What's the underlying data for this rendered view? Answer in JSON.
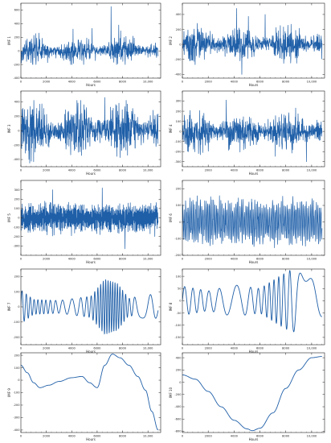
{
  "chart_data": [
    {
      "type": "line",
      "ylabel": "IMF 1",
      "xlabel": "Hours",
      "xlim": [
        0,
        11000
      ],
      "xticks": [
        0,
        2000,
        4000,
        6000,
        8000,
        10000
      ],
      "xtick_labels": [
        "0",
        "2000",
        "4000",
        "6000",
        "8000",
        "10,000"
      ],
      "ylim": [
        -400,
        700
      ],
      "yticks": [
        -400,
        -200,
        0,
        200,
        400,
        600
      ],
      "ytick_labels": [
        "-400",
        "-200",
        "0",
        "200",
        "400",
        "600"
      ],
      "color": "#1f5fa8",
      "series": [
        {
          "kind": "noise",
          "amp": 90,
          "max": 320,
          "min": -200,
          "spikes": [
            [
              7100,
              650
            ],
            [
              7700,
              380
            ],
            [
              5600,
              330
            ]
          ],
          "cycles": 0
        }
      ]
    },
    {
      "type": "line",
      "ylabel": "IMF 2",
      "xlabel": "Hours",
      "xlim": [
        0,
        11000
      ],
      "xticks": [
        0,
        2000,
        4000,
        6000,
        8000,
        10000
      ],
      "xtick_labels": [
        "0",
        "2000",
        "4000",
        "6000",
        "8000",
        "10,000"
      ],
      "ylim": [
        -450,
        550
      ],
      "yticks": [
        -400,
        -200,
        0,
        200,
        400
      ],
      "ytick_labels": [
        "-400",
        "-200",
        "0",
        "200",
        "400"
      ],
      "color": "#1f5fa8",
      "series": [
        {
          "kind": "noise",
          "amp": 110,
          "max": 500,
          "min": -420,
          "spikes": [
            [
              4200,
              480
            ],
            [
              4600,
              -400
            ],
            [
              6400,
              400
            ]
          ],
          "cycles": 0
        }
      ]
    },
    {
      "type": "line",
      "ylabel": "IMF 3",
      "xlabel": "Hours",
      "xlim": [
        0,
        11000
      ],
      "xticks": [
        0,
        2000,
        4000,
        6000,
        8000,
        10000
      ],
      "xtick_labels": [
        "0",
        "2000",
        "4000",
        "6000",
        "8000",
        "10,000"
      ],
      "ylim": [
        -500,
        550
      ],
      "yticks": [
        -400,
        -200,
        0,
        200,
        400
      ],
      "ytick_labels": [
        "-400",
        "-200",
        "0",
        "200",
        "400"
      ],
      "color": "#1f5fa8",
      "series": [
        {
          "kind": "noise",
          "amp": 170,
          "max": 420,
          "min": -450,
          "spikes": [
            [
              6600,
              460
            ],
            [
              1000,
              -430
            ]
          ],
          "cycles": 0
        }
      ]
    },
    {
      "type": "line",
      "ylabel": "IMF 4",
      "xlabel": "Hours",
      "xlim": [
        0,
        11000
      ],
      "xticks": [
        0,
        2000,
        4000,
        6000,
        8000,
        10000
      ],
      "xtick_labels": [
        "0",
        "2000",
        "4000",
        "6000",
        "8000",
        "10,000"
      ],
      "ylim": [
        -350,
        400
      ],
      "yticks": [
        -300,
        -200,
        -100,
        0,
        100,
        200,
        300
      ],
      "ytick_labels": [
        "-300",
        "-200",
        "-100",
        "0",
        "100",
        "200",
        "300"
      ],
      "color": "#1f5fa8",
      "series": [
        {
          "kind": "noise",
          "amp": 90,
          "max": 320,
          "min": -320,
          "spikes": [
            [
              3400,
              310
            ],
            [
              9600,
              -300
            ]
          ],
          "cycles": 0
        }
      ]
    },
    {
      "type": "line",
      "ylabel": "IMF 5",
      "xlabel": "Hours",
      "xlim": [
        0,
        11000
      ],
      "xticks": [
        0,
        2000,
        4000,
        6000,
        8000,
        10000
      ],
      "xtick_labels": [
        "0",
        "2000",
        "4000",
        "6000",
        "8000",
        "10,000"
      ],
      "ylim": [
        -400,
        400
      ],
      "yticks": [
        -300,
        -200,
        -100,
        0,
        100,
        200,
        300
      ],
      "ytick_labels": [
        "-300",
        "-200",
        "-100",
        "0",
        "100",
        "200",
        "300"
      ],
      "color": "#1f5fa8",
      "series": [
        {
          "kind": "osc",
          "amp": 120,
          "max": 330,
          "min": -350,
          "cycles": 260,
          "spikes": [
            [
              2500,
              300
            ],
            [
              6400,
              320
            ],
            [
              8200,
              -330
            ]
          ]
        }
      ]
    },
    {
      "type": "line",
      "ylabel": "IMF 6",
      "xlabel": "Hours",
      "xlim": [
        0,
        11000
      ],
      "xticks": [
        0,
        2000,
        4000,
        6000,
        8000,
        10000
      ],
      "xtick_labels": [
        "0",
        "2000",
        "4000",
        "6000",
        "8000",
        "10,000"
      ],
      "ylim": [
        -200,
        250
      ],
      "yticks": [
        -200,
        -100,
        0,
        100,
        200
      ],
      "ytick_labels": [
        "-200",
        "-100",
        "0",
        "100",
        "200"
      ],
      "color": "#1f5fa8",
      "series": [
        {
          "kind": "osc",
          "amp": 110,
          "max": 220,
          "min": -190,
          "cycles": 95,
          "spikes": []
        }
      ]
    },
    {
      "type": "line",
      "ylabel": "IMF 7",
      "xlabel": "Hours",
      "xlim": [
        0,
        11000
      ],
      "xticks": [
        0,
        2000,
        4000,
        6000,
        8000,
        10000
      ],
      "xtick_labels": [
        "0",
        "2000",
        "4000",
        "6000",
        "8000",
        "10,000"
      ],
      "ylim": [
        -250,
        250
      ],
      "yticks": [
        -200,
        -100,
        0,
        100,
        200
      ],
      "ytick_labels": [
        "-200",
        "-100",
        "0",
        "100",
        "200"
      ],
      "color": "#1f5fa8",
      "series": [
        {
          "kind": "wave",
          "amp": 70,
          "cycles": 30,
          "envelope": [
            [
              0,
              1.6
            ],
            [
              1000,
              0.7
            ],
            [
              3000,
              0.6
            ],
            [
              5500,
              1.0
            ],
            [
              6600,
              2.6
            ],
            [
              7600,
              2.2
            ],
            [
              8500,
              0.8
            ],
            [
              10000,
              1.2
            ],
            [
              11000,
              1.0
            ]
          ]
        }
      ]
    },
    {
      "type": "line",
      "ylabel": "IMF 8",
      "xlabel": "Hours",
      "xlim": [
        0,
        11000
      ],
      "xticks": [
        0,
        2000,
        4000,
        6000,
        8000,
        10000
      ],
      "xtick_labels": [
        "0",
        "2000",
        "4000",
        "6000",
        "8000",
        "10,000"
      ],
      "ylim": [
        -180,
        130
      ],
      "yticks": [
        -150,
        -100,
        -50,
        0,
        50,
        100
      ],
      "ytick_labels": [
        "-150",
        "-100",
        "-50",
        "0",
        "50",
        "100"
      ],
      "color": "#1f5fa8",
      "series": [
        {
          "kind": "wave",
          "amp": 50,
          "cycles": 15,
          "envelope": [
            [
              0,
              1.2
            ],
            [
              2000,
              0.8
            ],
            [
              4000,
              1.3
            ],
            [
              6000,
              1.0
            ],
            [
              7500,
              2.0
            ],
            [
              8500,
              2.6
            ],
            [
              10000,
              1.8
            ],
            [
              11000,
              1.2
            ]
          ]
        }
      ]
    },
    {
      "type": "line",
      "ylabel": "IMF 9",
      "xlabel": "Hours",
      "xlim": [
        0,
        11000
      ],
      "xticks": [
        0,
        2000,
        4000,
        6000,
        8000,
        10000
      ],
      "xtick_labels": [
        "0",
        "2000",
        "4000",
        "6000",
        "8000",
        "10,000"
      ],
      "ylim": [
        -420,
        220
      ],
      "yticks": [
        -400,
        -300,
        -200,
        -100,
        0,
        100,
        200
      ],
      "ytick_labels": [
        "-400",
        "-300",
        "-200",
        "-100",
        "0",
        "100",
        "200"
      ],
      "color": "#1f5fa8",
      "series": [
        {
          "kind": "points",
          "x": [
            0,
            500,
            1000,
            1500,
            2200,
            3000,
            4000,
            4800,
            5400,
            6000,
            6600,
            7200,
            7800,
            8500,
            9200,
            9800,
            10300,
            10800
          ],
          "y": [
            120,
            60,
            -20,
            -60,
            -40,
            -10,
            20,
            30,
            -20,
            -60,
            120,
            210,
            180,
            120,
            30,
            -80,
            -250,
            -400
          ]
        }
      ]
    },
    {
      "type": "line",
      "ylabel": "IMF 10",
      "xlabel": "Hours",
      "xlim": [
        0,
        11000
      ],
      "xticks": [
        0,
        2000,
        4000,
        6000,
        8000,
        10000
      ],
      "xtick_labels": [
        "0",
        "2000",
        "4000",
        "6000",
        "8000",
        "10,000"
      ],
      "ylim": [
        -820,
        480
      ],
      "yticks": [
        -800,
        -600,
        -400,
        -200,
        0,
        200,
        400
      ],
      "ytick_labels": [
        "-800",
        "-600",
        "-400",
        "-200",
        "0",
        "200",
        "400"
      ],
      "color": "#1f5fa8",
      "series": [
        {
          "kind": "points",
          "x": [
            0,
            1000,
            2000,
            3000,
            4000,
            5000,
            5400,
            6000,
            7000,
            8000,
            9000,
            10000,
            10800
          ],
          "y": [
            120,
            50,
            -150,
            -400,
            -620,
            -760,
            -790,
            -750,
            -500,
            -100,
            200,
            400,
            420
          ]
        }
      ]
    }
  ]
}
